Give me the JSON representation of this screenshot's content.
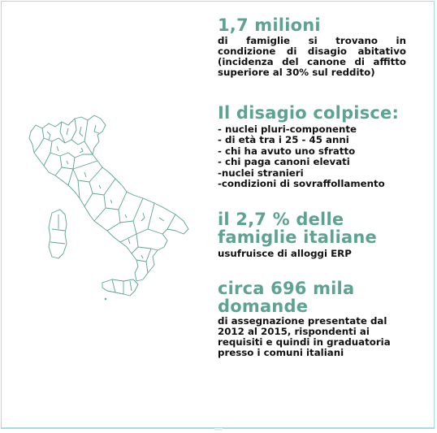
{
  "stat1": {
    "heading": "1,7 milioni",
    "text": "di famiglie si trovano in condizione di disagio abitativo (incidenza del canone di affitto superiore al 30% sul reddito)"
  },
  "stat2": {
    "heading": "Il disagio colpisce:",
    "items": [
      "- nuclei pluri-componente",
      "- di età tra i 25 - 45 anni",
      "- chi ha avuto uno sfratto",
      "- chi paga canoni elevati",
      "-nuclei stranieri",
      "-condizioni di sovraffollamento"
    ]
  },
  "stat3": {
    "heading_line1": "il 2,7 % delle",
    "heading_line2": "famiglie italiane",
    "text": "usufruisce di alloggi ERP"
  },
  "stat4": {
    "heading_line1": "circa 696 mila",
    "heading_line2": "domande",
    "text": "di assegnazione presentate dal 2012 al 2015, rispondenti ai requisiti e quindi in graduatoria presso i comuni italiani"
  },
  "colors": {
    "accent": "#5ca392",
    "map_line": "#5ca392",
    "frame": "#a9d9e2"
  },
  "map": {
    "icon": "italy-regions-map"
  }
}
